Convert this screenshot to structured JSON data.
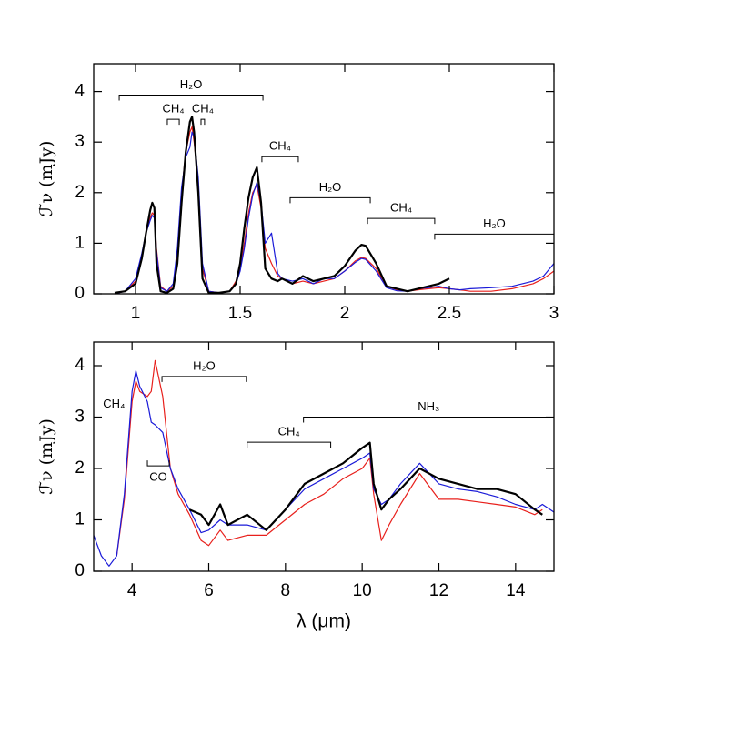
{
  "chart_data": [
    {
      "type": "line",
      "ylabel": "ℱν (mJy)",
      "x": [
        0.9,
        0.95,
        1.0,
        1.03,
        1.05,
        1.07,
        1.08,
        1.09,
        1.1,
        1.12,
        1.15,
        1.18,
        1.2,
        1.22,
        1.24,
        1.26,
        1.27,
        1.28,
        1.3,
        1.32,
        1.35,
        1.4,
        1.45,
        1.48,
        1.5,
        1.52,
        1.54,
        1.56,
        1.58,
        1.6,
        1.62,
        1.65,
        1.68,
        1.7,
        1.75,
        1.8,
        1.85,
        1.9,
        1.95,
        2.0,
        2.05,
        2.08,
        2.1,
        2.15,
        2.2,
        2.25,
        2.3,
        2.35,
        2.4,
        2.45,
        2.5,
        2.55,
        2.6,
        2.7,
        2.8,
        2.9,
        2.95,
        3.0
      ],
      "series": [
        {
          "name": "red",
          "color": "#e8201c",
          "width": 1.2,
          "values": [
            0.0,
            0.05,
            0.25,
            0.75,
            1.2,
            1.5,
            1.6,
            1.55,
            0.9,
            0.15,
            0.05,
            0.15,
            0.8,
            2.0,
            2.8,
            3.2,
            3.3,
            3.0,
            2.2,
            0.5,
            0.05,
            0.02,
            0.05,
            0.25,
            0.5,
            1.0,
            1.6,
            2.0,
            2.15,
            1.7,
            0.9,
            0.6,
            0.35,
            0.3,
            0.2,
            0.25,
            0.2,
            0.25,
            0.3,
            0.45,
            0.65,
            0.72,
            0.7,
            0.5,
            0.15,
            0.08,
            0.05,
            0.08,
            0.1,
            0.12,
            0.1,
            0.08,
            0.05,
            0.05,
            0.1,
            0.2,
            0.3,
            0.45
          ]
        },
        {
          "name": "blue",
          "color": "#1a1ad8",
          "width": 1.2,
          "values": [
            0.0,
            0.05,
            0.3,
            0.8,
            1.2,
            1.45,
            1.55,
            1.5,
            0.85,
            0.12,
            0.05,
            0.2,
            0.9,
            2.1,
            2.7,
            2.9,
            3.2,
            3.1,
            2.3,
            0.6,
            0.05,
            0.02,
            0.05,
            0.2,
            0.45,
            0.9,
            1.5,
            1.95,
            2.2,
            1.8,
            1.0,
            1.2,
            0.4,
            0.3,
            0.25,
            0.3,
            0.2,
            0.3,
            0.3,
            0.45,
            0.62,
            0.7,
            0.68,
            0.45,
            0.12,
            0.06,
            0.05,
            0.1,
            0.12,
            0.15,
            0.1,
            0.08,
            0.1,
            0.12,
            0.15,
            0.25,
            0.35,
            0.6
          ]
        },
        {
          "name": "black",
          "color": "#000000",
          "width": 2.2,
          "values": [
            0.02,
            0.05,
            0.2,
            0.7,
            1.2,
            1.65,
            1.8,
            1.7,
            0.6,
            0.05,
            0.02,
            0.1,
            0.6,
            1.8,
            2.8,
            3.4,
            3.5,
            3.2,
            2.0,
            0.3,
            0.02,
            0.02,
            0.05,
            0.2,
            0.6,
            1.3,
            1.9,
            2.3,
            2.5,
            1.8,
            0.5,
            0.3,
            0.25,
            0.3,
            0.2,
            0.35,
            0.25,
            0.3,
            0.35,
            0.55,
            0.85,
            0.97,
            0.95,
            0.6,
            0.15,
            0.1,
            0.05,
            0.1,
            0.15,
            0.2,
            0.3,
            null,
            null,
            null,
            null,
            null,
            null,
            null
          ]
        }
      ],
      "xlim": [
        0.8,
        3
      ],
      "ylim": [
        0,
        4.55
      ],
      "xticks": [
        1,
        1.5,
        2,
        2.5,
        3
      ],
      "yticks": [
        0,
        1,
        2,
        3,
        4
      ],
      "annotations": [
        {
          "text": "H₂O",
          "x": [
            0.922,
            1.609
          ],
          "y": 3.93
        },
        {
          "text": "CH₄",
          "x": [
            1.152,
            1.209
          ],
          "y": 3.45
        },
        {
          "text": "CH₄",
          "x": [
            1.313,
            1.33
          ],
          "y": 3.45
        },
        {
          "text": "CH₄",
          "x": [
            1.604,
            1.778
          ],
          "y": 2.71
        },
        {
          "text": "H₂O",
          "x": [
            1.739,
            2.122
          ],
          "y": 1.9
        },
        {
          "text": "CH₄",
          "x": [
            2.109,
            2.43
          ],
          "y": 1.49
        },
        {
          "text": "H₂O",
          "x": [
            2.43,
            3.0
          ],
          "y": 1.18
        }
      ]
    },
    {
      "type": "line",
      "xlabel": "λ (μm)",
      "ylabel": "ℱν (mJy)",
      "x": [
        3.0,
        3.2,
        3.4,
        3.6,
        3.8,
        4.0,
        4.1,
        4.2,
        4.4,
        4.5,
        4.6,
        4.8,
        5.0,
        5.2,
        5.5,
        5.8,
        6.0,
        6.3,
        6.5,
        7.0,
        7.5,
        8.0,
        8.5,
        9.0,
        9.5,
        10.0,
        10.2,
        10.3,
        10.5,
        10.7,
        11.0,
        11.5,
        12.0,
        12.5,
        13.0,
        13.5,
        14.0,
        14.5,
        14.7,
        15.0
      ],
      "series": [
        {
          "name": "red",
          "color": "#e8201c",
          "width": 1.2,
          "values": [
            null,
            null,
            null,
            0.3,
            1.4,
            3.3,
            3.7,
            3.5,
            3.4,
            3.5,
            4.1,
            3.4,
            2.0,
            1.5,
            1.1,
            0.6,
            0.5,
            0.8,
            0.6,
            0.7,
            0.7,
            1.0,
            1.3,
            1.5,
            1.8,
            2.0,
            2.2,
            1.5,
            0.6,
            0.9,
            1.3,
            1.9,
            1.4,
            1.4,
            1.35,
            1.3,
            1.25,
            1.1,
            1.2,
            null
          ]
        },
        {
          "name": "blue",
          "color": "#1a1ad8",
          "width": 1.2,
          "values": [
            0.7,
            0.3,
            0.1,
            0.3,
            1.5,
            3.5,
            3.9,
            3.6,
            3.3,
            2.9,
            2.85,
            2.7,
            2.0,
            1.6,
            1.2,
            0.75,
            0.8,
            1.0,
            0.9,
            0.9,
            0.8,
            1.2,
            1.6,
            1.8,
            2.0,
            2.2,
            2.3,
            1.6,
            1.3,
            1.4,
            1.7,
            2.1,
            1.7,
            1.6,
            1.55,
            1.45,
            1.3,
            1.2,
            1.3,
            1.15
          ]
        },
        {
          "name": "black",
          "color": "#000000",
          "width": 2.2,
          "values": [
            null,
            null,
            null,
            null,
            null,
            null,
            null,
            null,
            null,
            null,
            null,
            null,
            null,
            null,
            1.2,
            1.1,
            0.9,
            1.3,
            0.9,
            1.1,
            0.8,
            1.2,
            1.7,
            1.9,
            2.1,
            2.4,
            2.5,
            1.7,
            1.2,
            1.4,
            1.6,
            2.0,
            1.8,
            1.7,
            1.6,
            1.6,
            1.5,
            1.2,
            1.1,
            null
          ]
        }
      ],
      "xlim": [
        3,
        15
      ],
      "ylim": [
        0,
        4.46
      ],
      "xticks": [
        4,
        6,
        8,
        10,
        12,
        14
      ],
      "yticks": [
        0,
        1,
        2,
        3,
        4
      ],
      "annotations": [
        {
          "text": "CH₄",
          "x": 3.53,
          "y": 3.25
        },
        {
          "text": "H₂O",
          "x": [
            4.78,
            6.98
          ],
          "y": 3.79
        },
        {
          "text": "CO",
          "x": [
            4.4,
            4.97
          ],
          "y": 2.05,
          "label_below": true
        },
        {
          "text": "CH₄",
          "x": [
            7.0,
            9.18
          ],
          "y": 2.51
        },
        {
          "text": "NH₃",
          "x": [
            8.47,
            15.0
          ],
          "y": 3.0
        }
      ]
    }
  ]
}
